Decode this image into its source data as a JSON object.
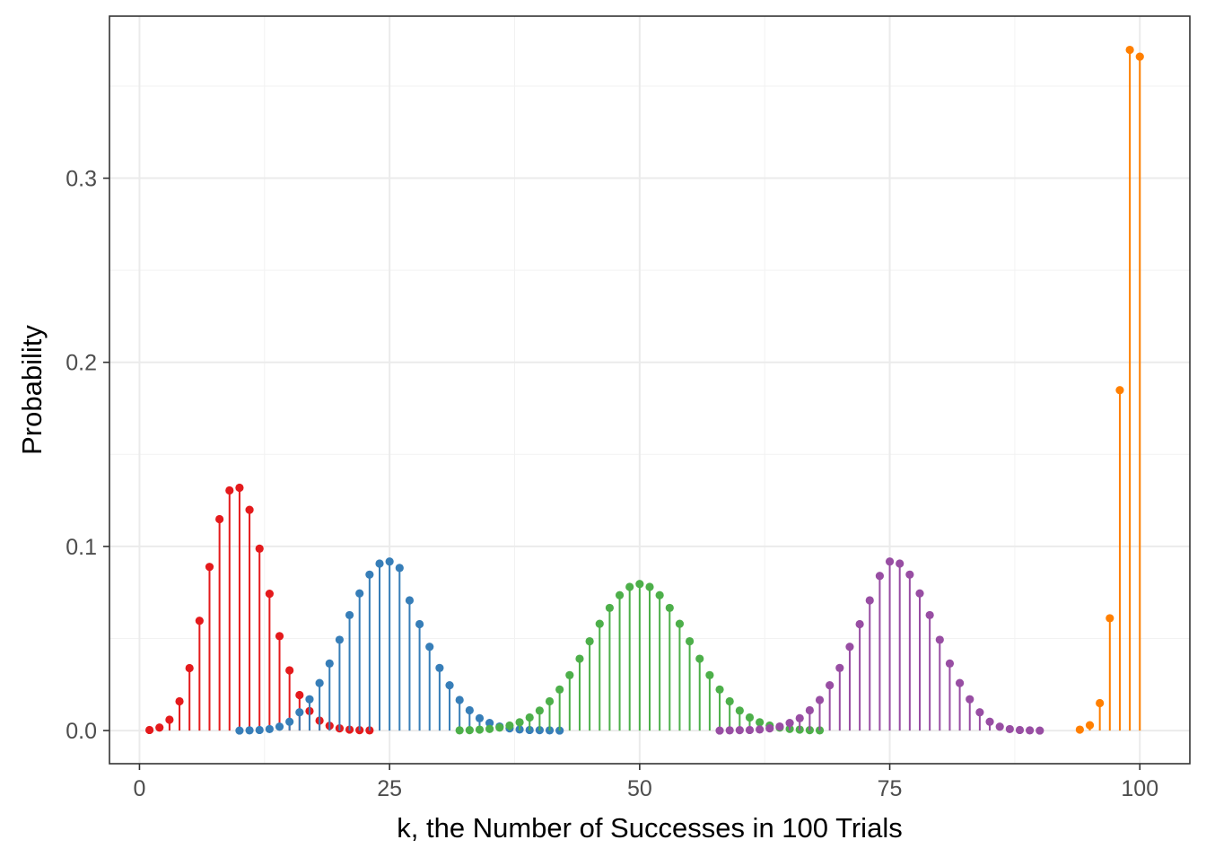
{
  "chart_data": {
    "type": "lollipop",
    "title": "",
    "xlabel": "k, the Number of Successes in 100 Trials",
    "ylabel": "Probability",
    "xlim": [
      -3,
      105
    ],
    "ylim": [
      -0.018,
      0.388
    ],
    "x_ticks": [
      0,
      25,
      50,
      75,
      100
    ],
    "x_tick_labels": [
      "0",
      "25",
      "50",
      "75",
      "100"
    ],
    "y_ticks": [
      0.0,
      0.1,
      0.2,
      0.3
    ],
    "y_tick_labels": [
      "0.0",
      "0.1",
      "0.2",
      "0.3"
    ],
    "grid": true,
    "legend": "none",
    "series": [
      {
        "color": "#e41a1c",
        "x": [
          1,
          2,
          3,
          4,
          5,
          6,
          7,
          8,
          9,
          10,
          11,
          12,
          13,
          14,
          15,
          16,
          17,
          18,
          19,
          20,
          21,
          22,
          23
        ],
        "y": [
          0.0003,
          0.0016,
          0.0059,
          0.0159,
          0.0339,
          0.0596,
          0.0889,
          0.1148,
          0.1304,
          0.1319,
          0.1199,
          0.0988,
          0.0743,
          0.0513,
          0.0327,
          0.0193,
          0.0106,
          0.0054,
          0.0026,
          0.0012,
          0.0005,
          0.0002,
          0.0001
        ]
      },
      {
        "color": "#377eb8",
        "x": [
          10,
          11,
          12,
          13,
          14,
          15,
          16,
          17,
          18,
          19,
          20,
          21,
          22,
          23,
          24,
          25,
          26,
          27,
          28,
          29,
          30,
          31,
          32,
          33,
          34,
          35,
          36,
          37,
          38,
          39,
          40,
          41,
          42
        ],
        "y": [
          0.0,
          0.0001,
          0.0003,
          0.0008,
          0.0021,
          0.0048,
          0.0099,
          0.017,
          0.0258,
          0.0364,
          0.0493,
          0.0627,
          0.0745,
          0.0847,
          0.0907,
          0.0918,
          0.0883,
          0.0707,
          0.0578,
          0.0455,
          0.034,
          0.0246,
          0.0166,
          0.011,
          0.0067,
          0.0041,
          0.0022,
          0.0012,
          0.0006,
          0.0003,
          0.0002,
          0.0001,
          0.0
        ]
      },
      {
        "color": "#4daf4a",
        "x": [
          32,
          33,
          34,
          35,
          36,
          37,
          38,
          39,
          40,
          41,
          42,
          43,
          44,
          45,
          46,
          47,
          48,
          49,
          50,
          51,
          52,
          53,
          54,
          55,
          56,
          57,
          58,
          59,
          60,
          61,
          62,
          63,
          64,
          65,
          66,
          67,
          68
        ],
        "y": [
          0.0001,
          0.0002,
          0.0005,
          0.0009,
          0.0016,
          0.0027,
          0.0045,
          0.0071,
          0.0108,
          0.0159,
          0.0223,
          0.0301,
          0.039,
          0.0485,
          0.058,
          0.0666,
          0.0735,
          0.078,
          0.0796,
          0.078,
          0.0735,
          0.0666,
          0.058,
          0.0485,
          0.039,
          0.0301,
          0.0223,
          0.0159,
          0.0108,
          0.0071,
          0.0045,
          0.0027,
          0.0016,
          0.0009,
          0.0005,
          0.0002,
          0.0001
        ]
      },
      {
        "color": "#984ea3",
        "x": [
          58,
          59,
          60,
          61,
          62,
          63,
          64,
          65,
          66,
          67,
          68,
          69,
          70,
          71,
          72,
          73,
          74,
          75,
          76,
          77,
          78,
          79,
          80,
          81,
          82,
          83,
          84,
          85,
          86,
          87,
          88,
          89,
          90
        ],
        "y": [
          0.0,
          0.0001,
          0.0002,
          0.0003,
          0.0006,
          0.0012,
          0.0022,
          0.0041,
          0.0067,
          0.011,
          0.0166,
          0.0246,
          0.034,
          0.0455,
          0.0578,
          0.0707,
          0.084,
          0.0918,
          0.0907,
          0.0847,
          0.0745,
          0.0627,
          0.0493,
          0.0364,
          0.0258,
          0.017,
          0.0099,
          0.0048,
          0.0021,
          0.0008,
          0.0003,
          0.0001,
          0.0
        ]
      },
      {
        "color": "#ff7f00",
        "x": [
          94,
          95,
          96,
          97,
          98,
          99,
          100
        ],
        "y": [
          0.0005,
          0.0029,
          0.0149,
          0.061,
          0.1849,
          0.3697,
          0.366
        ]
      }
    ]
  }
}
